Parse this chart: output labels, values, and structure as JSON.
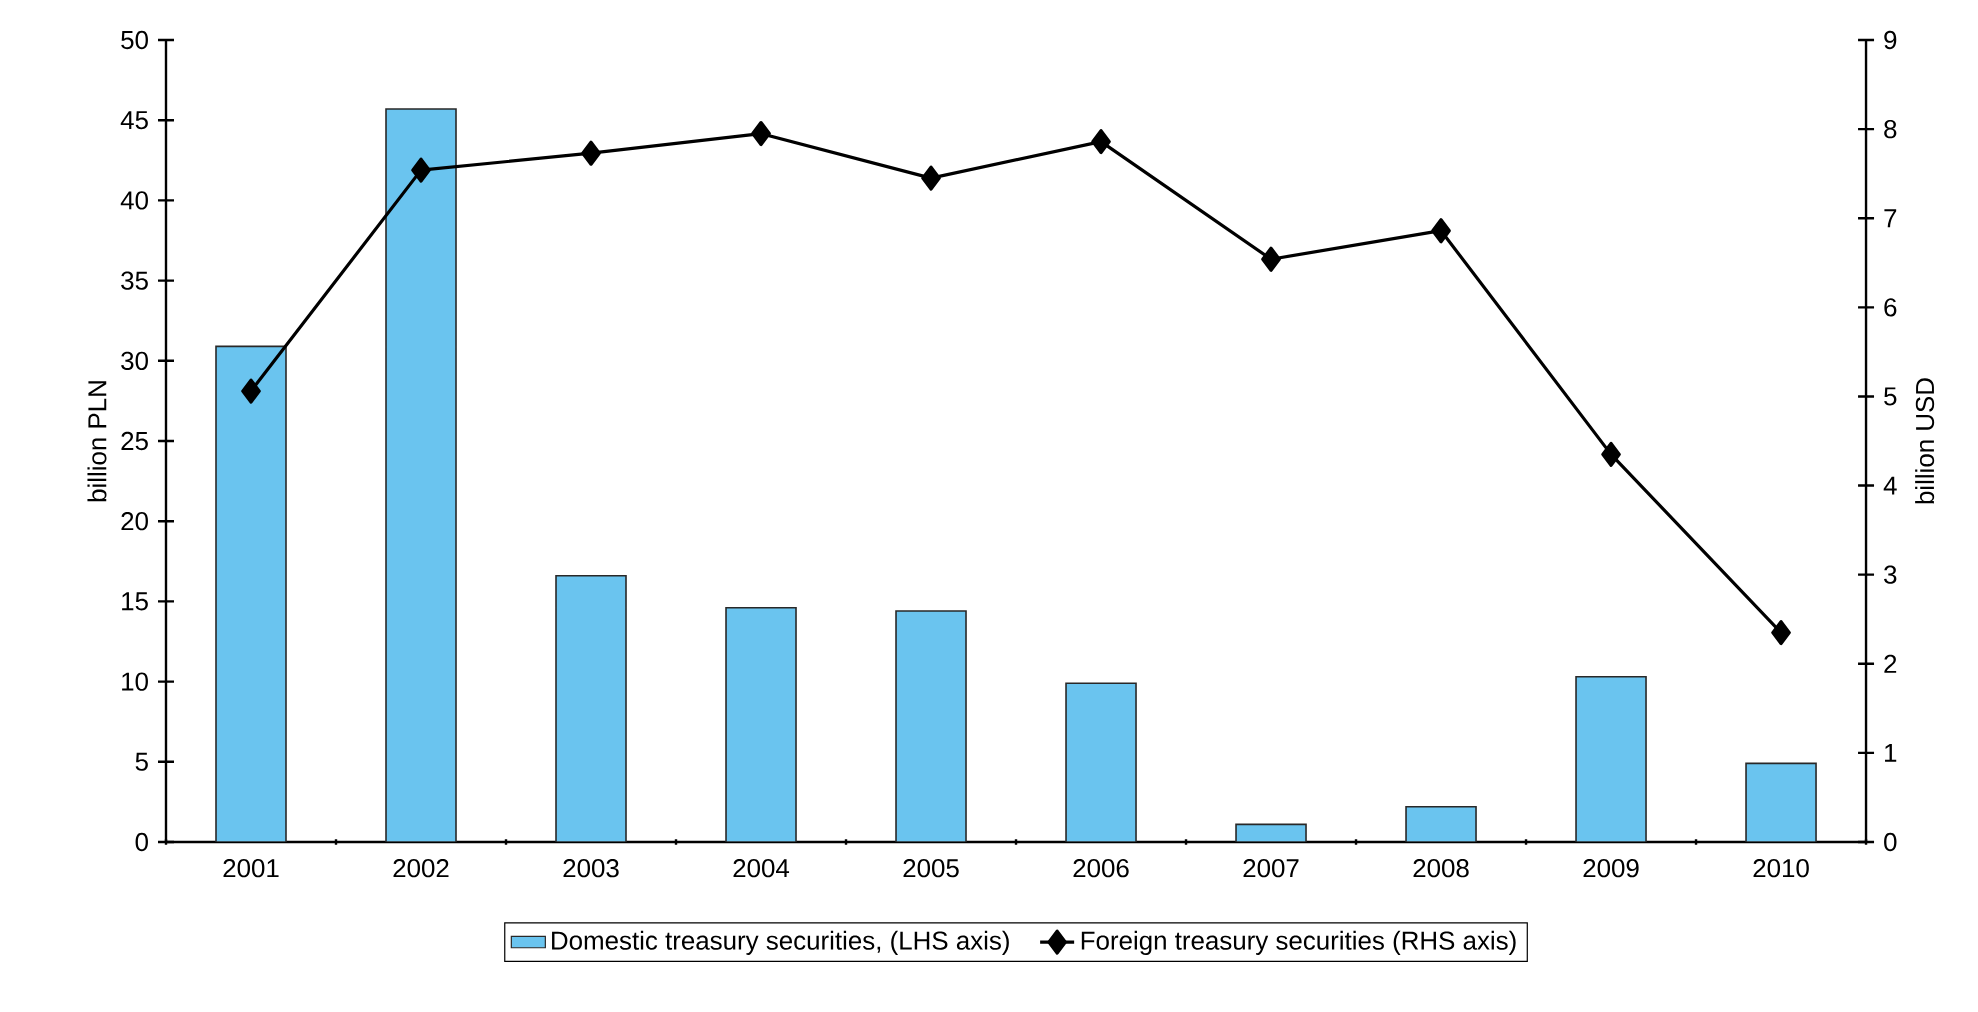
{
  "chart_data": {
    "type": "bar",
    "categories": [
      "2001",
      "2002",
      "2003",
      "2004",
      "2005",
      "2006",
      "2007",
      "2008",
      "2009",
      "2010"
    ],
    "ylabel": "billion PLN",
    "y2label": "billion USD",
    "ylim": [
      0,
      50
    ],
    "yticks": [
      0,
      5,
      10,
      15,
      20,
      25,
      30,
      35,
      40,
      45,
      50
    ],
    "y2lim": [
      0,
      9
    ],
    "y2ticks": [
      0,
      1,
      2,
      3,
      4,
      5,
      6,
      7,
      8,
      9
    ],
    "legend": "bottom",
    "series": [
      {
        "name": "Domestic treasury securities, (LHS axis)",
        "color": "#6ac4ef",
        "values": [
          30.9,
          45.7,
          16.6,
          14.6,
          14.4,
          9.9,
          1.1,
          2.2,
          10.3,
          4.9
        ]
      },
      {
        "name": "Foreign treasury securities (RHS axis)",
        "type": "line",
        "axis": "y2",
        "color": "#000000",
        "marker": "diamond",
        "line_style": "solid",
        "values": [
          5.06,
          7.54,
          7.73,
          7.95,
          7.45,
          7.86,
          6.54,
          6.86,
          4.35,
          2.35
        ]
      }
    ]
  }
}
